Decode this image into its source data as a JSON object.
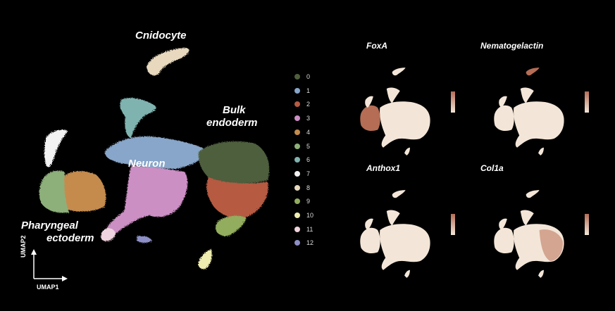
{
  "main_umap": {
    "labels": {
      "cnidocyte": "Cnidocyte",
      "bulk_endoderm_line1": "Bulk",
      "bulk_endoderm_line2": "endoderm",
      "neuron": "Neuron",
      "pharyngeal_line1": "Pharyngeal",
      "pharyngeal_line2": "ectoderm"
    },
    "axes": {
      "y": "UMAP2",
      "x": "UMAP1"
    }
  },
  "legend": [
    {
      "label": "0",
      "color": "#4e5e3e"
    },
    {
      "label": "1",
      "color": "#87a6c9"
    },
    {
      "label": "2",
      "color": "#b65a42"
    },
    {
      "label": "3",
      "color": "#cc8fc4"
    },
    {
      "label": "4",
      "color": "#c48b4e"
    },
    {
      "label": "5",
      "color": "#8db07a"
    },
    {
      "label": "6",
      "color": "#7fb3b0"
    },
    {
      "label": "7",
      "color": "#f2f2f2"
    },
    {
      "label": "8",
      "color": "#e8d9be"
    },
    {
      "label": "9",
      "color": "#93ad5f"
    },
    {
      "label": "10",
      "color": "#efeeb0"
    },
    {
      "label": "11",
      "color": "#efd3de"
    },
    {
      "label": "12",
      "color": "#8d8fc6"
    }
  ],
  "feature_plots": [
    {
      "gene": "FoxA",
      "highlight": "pharyngeal"
    },
    {
      "gene": "Nematogelactin",
      "highlight": "cnidocyte"
    },
    {
      "gene": "Anthox1",
      "highlight": "none"
    },
    {
      "gene": "Col1a",
      "highlight": "endoderm"
    }
  ],
  "colors": {
    "background": "#000000",
    "expr_low": "#f3e6d8",
    "expr_high": "#b56d55"
  }
}
